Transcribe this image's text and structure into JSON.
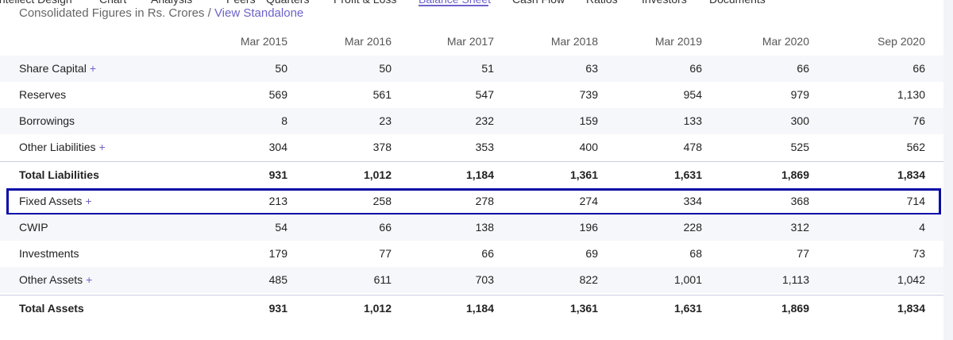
{
  "nav": {
    "tabs": [
      "Intellect Design",
      "Chart",
      "Analysis",
      "Peers",
      "Quarters",
      "Profit & Loss",
      "Balance Sheet",
      "Cash Flow",
      "Ratios",
      "Investors",
      "Documents"
    ],
    "active": 6
  },
  "header": {
    "subtitle": "Consolidated Figures in Rs. Crores /",
    "link": "View Standalone"
  },
  "table": {
    "columns": [
      "Mar 2015",
      "Mar 2016",
      "Mar 2017",
      "Mar 2018",
      "Mar 2019",
      "Mar 2020",
      "Sep 2020"
    ],
    "rows": [
      {
        "label": "Share Capital",
        "toggle": "+",
        "values": [
          "50",
          "50",
          "51",
          "63",
          "66",
          "66",
          "66"
        ]
      },
      {
        "label": "Reserves",
        "values": [
          "569",
          "561",
          "547",
          "739",
          "954",
          "979",
          "1,130"
        ]
      },
      {
        "label": "Borrowings",
        "values": [
          "8",
          "23",
          "232",
          "159",
          "133",
          "300",
          "76"
        ]
      },
      {
        "label": "Other Liabilities",
        "toggle": "+",
        "values": [
          "304",
          "378",
          "353",
          "400",
          "478",
          "525",
          "562"
        ]
      },
      {
        "label": "Total Liabilities",
        "total": true,
        "values": [
          "931",
          "1,012",
          "1,184",
          "1,361",
          "1,631",
          "1,869",
          "1,834"
        ]
      },
      {
        "label": "Fixed Assets",
        "toggle": "+",
        "highlight": true,
        "values": [
          "213",
          "258",
          "278",
          "274",
          "334",
          "368",
          "714"
        ]
      },
      {
        "label": "CWIP",
        "values": [
          "54",
          "66",
          "138",
          "196",
          "228",
          "312",
          "4"
        ]
      },
      {
        "label": "Investments",
        "values": [
          "179",
          "77",
          "66",
          "69",
          "68",
          "77",
          "73"
        ]
      },
      {
        "label": "Other Assets",
        "toggle": "+",
        "values": [
          "485",
          "611",
          "703",
          "822",
          "1,001",
          "1,113",
          "1,042"
        ]
      },
      {
        "label": "Total Assets",
        "total": true,
        "values": [
          "931",
          "1,012",
          "1,184",
          "1,361",
          "1,631",
          "1,869",
          "1,834"
        ]
      }
    ]
  }
}
